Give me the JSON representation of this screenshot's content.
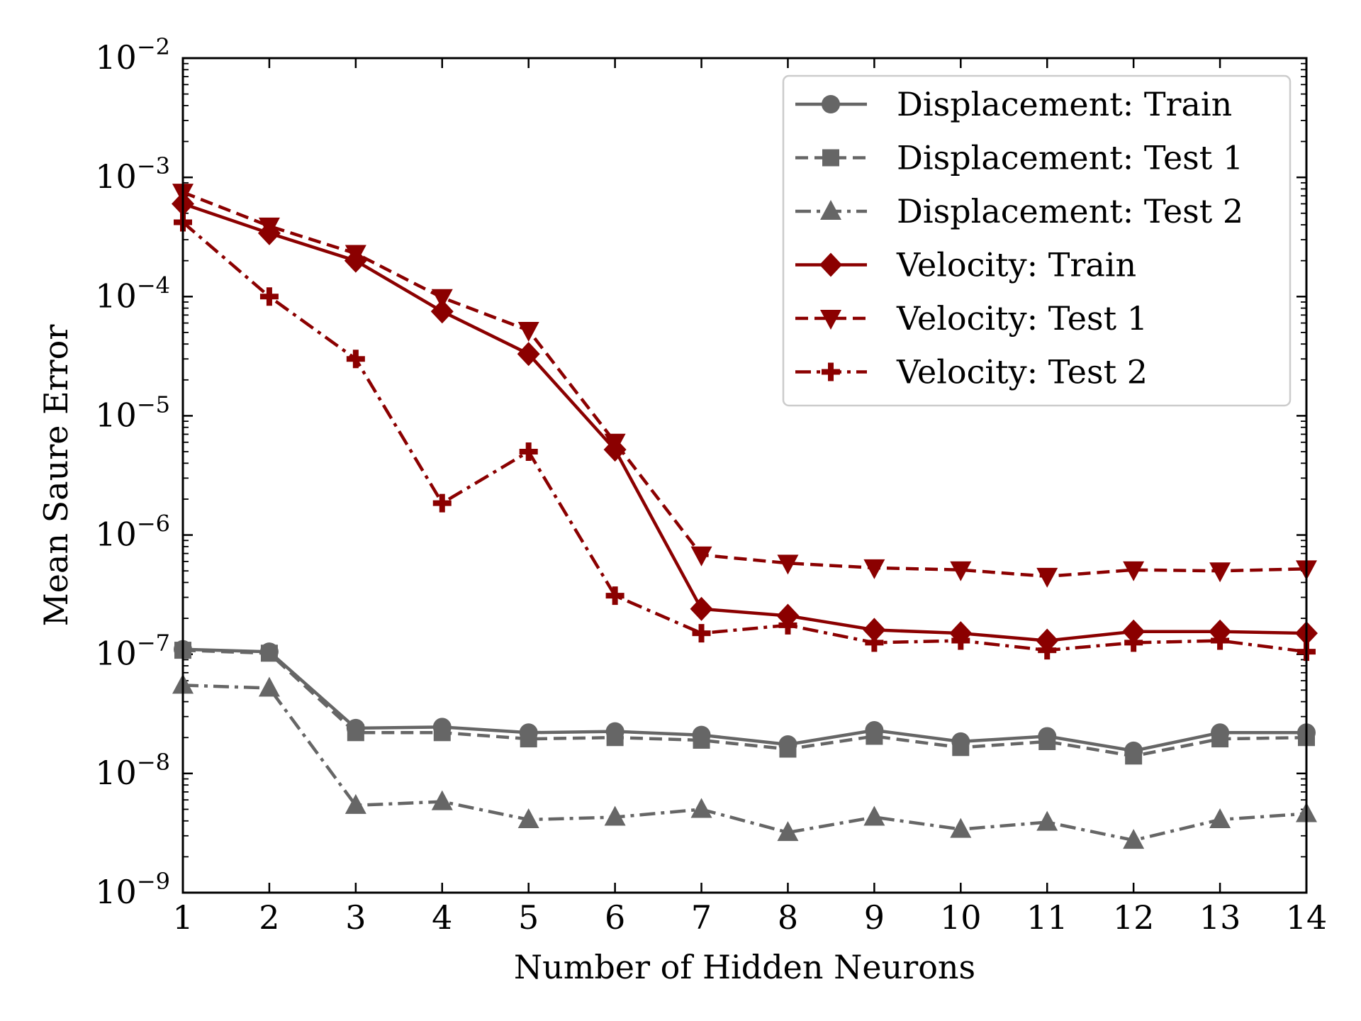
{
  "chart_data": {
    "type": "line",
    "xlabel": "Number of Hidden Neurons",
    "ylabel": "Mean Saure Error",
    "xlim": [
      1,
      14
    ],
    "ylim": [
      1e-09,
      0.01
    ],
    "yscale": "log",
    "grid": false,
    "legend_position": "top-right",
    "x_ticks": [
      "1",
      "2",
      "3",
      "4",
      "5",
      "6",
      "7",
      "8",
      "9",
      "10",
      "11",
      "12",
      "13",
      "14"
    ],
    "y_ticks": [
      {
        "base": "10",
        "exp": "−9",
        "value": 1e-09
      },
      {
        "base": "10",
        "exp": "−8",
        "value": 1e-08
      },
      {
        "base": "10",
        "exp": "−7",
        "value": 1e-07
      },
      {
        "base": "10",
        "exp": "−6",
        "value": 1e-06
      },
      {
        "base": "10",
        "exp": "−5",
        "value": 1e-05
      },
      {
        "base": "10",
        "exp": "−4",
        "value": 0.0001
      },
      {
        "base": "10",
        "exp": "−3",
        "value": 0.001
      },
      {
        "base": "10",
        "exp": "−2",
        "value": 0.01
      }
    ],
    "x": [
      1,
      2,
      3,
      4,
      5,
      6,
      7,
      8,
      9,
      10,
      11,
      12,
      13,
      14
    ],
    "series": [
      {
        "name": "Displacement: Train",
        "color": "#666666",
        "dash": "solid",
        "marker": "circle",
        "values": [
          1.1e-07,
          1.05e-07,
          2.4e-08,
          2.45e-08,
          2.2e-08,
          2.25e-08,
          2.1e-08,
          1.75e-08,
          2.3e-08,
          1.85e-08,
          2.05e-08,
          1.55e-08,
          2.2e-08,
          2.2e-08
        ]
      },
      {
        "name": "Displacement: Test 1",
        "color": "#666666",
        "dash": "dashed",
        "marker": "square",
        "values": [
          1.08e-07,
          1.02e-07,
          2.2e-08,
          2.2e-08,
          1.95e-08,
          2e-08,
          1.9e-08,
          1.6e-08,
          2.05e-08,
          1.65e-08,
          1.85e-08,
          1.4e-08,
          1.95e-08,
          2e-08
        ]
      },
      {
        "name": "Displacement: Test 2",
        "color": "#666666",
        "dash": "dashdot",
        "marker": "triangle-up",
        "values": [
          5.5e-08,
          5.2e-08,
          5.4e-09,
          5.8e-09,
          4.1e-09,
          4.3e-09,
          5e-09,
          3.2e-09,
          4.3e-09,
          3.4e-09,
          3.9e-09,
          2.75e-09,
          4.1e-09,
          4.6e-09
        ]
      },
      {
        "name": "Velocity: Train",
        "color": "#8b0000",
        "dash": "solid",
        "marker": "diamond",
        "values": [
          0.0006,
          0.00034,
          0.0002,
          7.5e-05,
          3.3e-05,
          5.2e-06,
          2.4e-07,
          2.1e-07,
          1.6e-07,
          1.5e-07,
          1.3e-07,
          1.55e-07,
          1.55e-07,
          1.5e-07
        ]
      },
      {
        "name": "Velocity: Test 1",
        "color": "#8b0000",
        "dash": "dashed",
        "marker": "triangle-down",
        "values": [
          0.00075,
          0.00039,
          0.00023,
          9.8e-05,
          5.2e-05,
          6e-06,
          6.8e-07,
          5.8e-07,
          5.3e-07,
          5.1e-07,
          4.5e-07,
          5.1e-07,
          5e-07,
          5.2e-07
        ]
      },
      {
        "name": "Velocity: Test 2",
        "color": "#8b0000",
        "dash": "dashdot",
        "marker": "plus",
        "values": [
          0.00042,
          0.0001,
          3e-05,
          1.85e-06,
          5e-06,
          3.1e-07,
          1.5e-07,
          1.75e-07,
          1.25e-07,
          1.3e-07,
          1.08e-07,
          1.25e-07,
          1.3e-07,
          1.05e-07
        ]
      }
    ]
  }
}
